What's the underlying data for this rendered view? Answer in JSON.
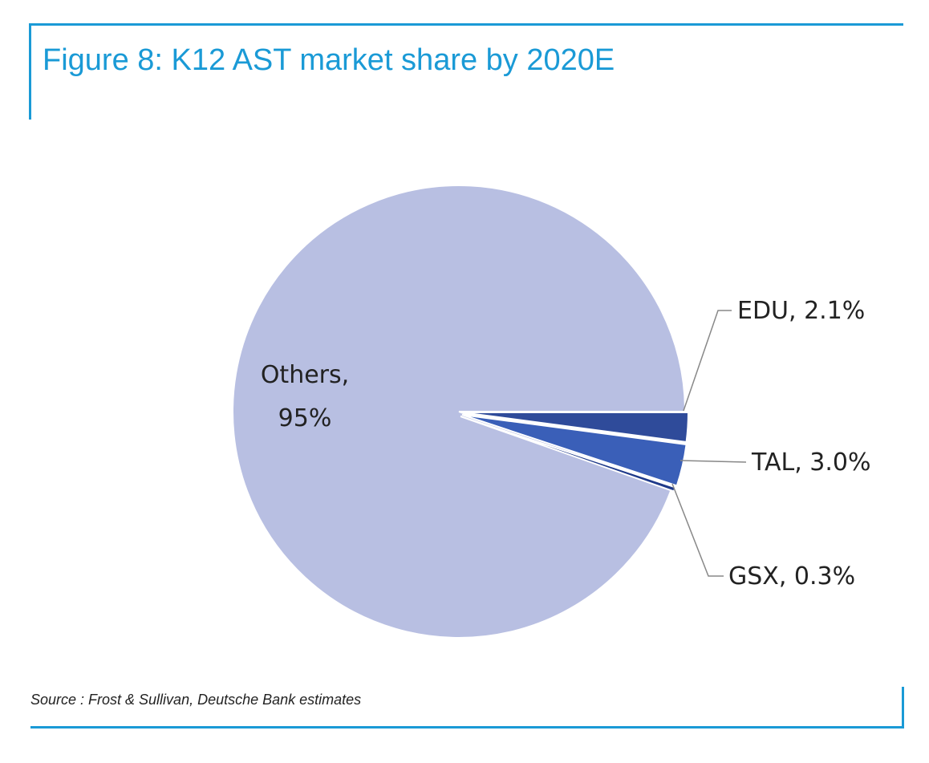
{
  "title": "Figure 8: K12 AST market share by 2020E",
  "source": "Source : Frost & Sullivan, Deutsche Bank estimates",
  "colors": {
    "accent": "#1a9ad6",
    "others": "#b8bfe2",
    "edu": "#2f4b9a",
    "tal": "#3a5fb8",
    "gsx": "#1f3a8a",
    "leader": "#888888"
  },
  "chart_data": {
    "type": "pie",
    "title": "Figure 8: K12 AST market share by 2020E",
    "slices": [
      {
        "label": "Others",
        "value": 95,
        "display": [
          "Others,",
          "95%"
        ]
      },
      {
        "label": "EDU",
        "value": 2.1,
        "display": [
          "EDU, 2.1%"
        ]
      },
      {
        "label": "TAL",
        "value": 3.0,
        "display": [
          "TAL, 3.0%"
        ]
      },
      {
        "label": "GSX",
        "value": 0.3,
        "display": [
          "GSX, 0.3%"
        ]
      }
    ]
  }
}
